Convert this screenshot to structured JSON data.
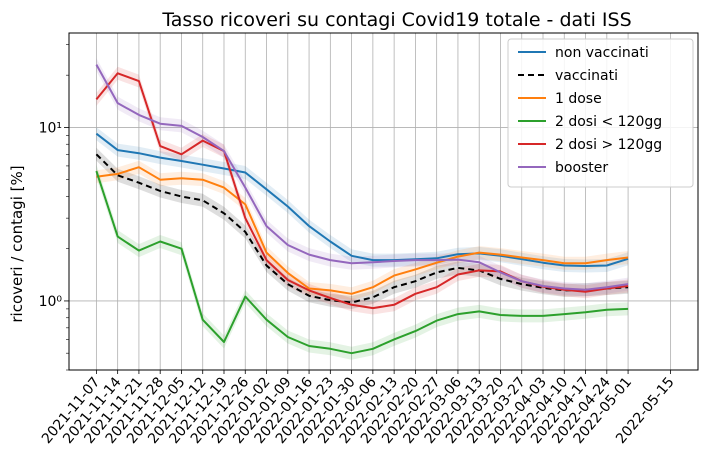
{
  "chart_data": {
    "type": "line",
    "title": "Tasso ricoveri su contagi Covid19 totale - dati ISS",
    "xlabel": "",
    "ylabel": "ricoveri / contagi [%]",
    "yscale": "log",
    "ylim": [
      0.4,
      35
    ],
    "yticks": [
      {
        "value": 1,
        "label": "10⁰"
      },
      {
        "value": 10,
        "label": "10¹"
      }
    ],
    "grid": true,
    "legend_position": "top-right",
    "x": [
      "2021-11-07",
      "2021-11-14",
      "2021-11-21",
      "2021-11-28",
      "2021-12-05",
      "2021-12-12",
      "2021-12-19",
      "2021-12-26",
      "2022-01-02",
      "2022-01-09",
      "2022-01-16",
      "2022-01-23",
      "2022-01-30",
      "2022-02-06",
      "2022-02-13",
      "2022-02-20",
      "2022-02-27",
      "2022-03-06",
      "2022-03-13",
      "2022-03-20",
      "2022-03-27",
      "2022-04-03",
      "2022-04-10",
      "2022-04-17",
      "2022-04-24",
      "2022-05-01"
    ],
    "xticks": [
      "2021-11-07",
      "2021-11-14",
      "2021-11-21",
      "2021-11-28",
      "2021-12-05",
      "2021-12-12",
      "2021-12-19",
      "2021-12-26",
      "2022-01-02",
      "2022-01-09",
      "2022-01-16",
      "2022-01-23",
      "2022-01-30",
      "2022-02-06",
      "2022-02-13",
      "2022-02-20",
      "2022-02-27",
      "2022-03-06",
      "2022-03-13",
      "2022-03-20",
      "2022-03-27",
      "2022-04-03",
      "2022-04-10",
      "2022-04-17",
      "2022-04-24",
      "2022-05-01",
      "2022-05-15"
    ],
    "x_range": [
      "2021-11-07",
      "2022-05-15"
    ],
    "series": [
      {
        "name": "non vaccinati",
        "color": "#1f77b4",
        "dash": "solid",
        "values": [
          9.2,
          7.4,
          7.1,
          6.7,
          6.4,
          6.1,
          5.8,
          5.5,
          4.4,
          3.5,
          2.7,
          2.2,
          1.82,
          1.72,
          1.72,
          1.74,
          1.76,
          1.86,
          1.88,
          1.82,
          1.74,
          1.66,
          1.6,
          1.59,
          1.6,
          1.75
        ]
      },
      {
        "name": "vaccinati",
        "color": "#000000",
        "dash": "dashed",
        "values": [
          7.0,
          5.3,
          4.8,
          4.3,
          4.0,
          3.8,
          3.2,
          2.5,
          1.6,
          1.25,
          1.07,
          1.01,
          0.98,
          1.05,
          1.2,
          1.3,
          1.46,
          1.55,
          1.5,
          1.34,
          1.25,
          1.19,
          1.15,
          1.16,
          1.18,
          1.2
        ]
      },
      {
        "name": "1 dose",
        "color": "#ff7f0e",
        "dash": "solid",
        "values": [
          5.2,
          5.4,
          5.9,
          5.0,
          5.1,
          5.0,
          4.5,
          3.6,
          1.9,
          1.45,
          1.18,
          1.15,
          1.1,
          1.2,
          1.4,
          1.52,
          1.66,
          1.8,
          1.9,
          1.85,
          1.78,
          1.72,
          1.65,
          1.65,
          1.72,
          1.78
        ]
      },
      {
        "name": "2 dosi < 120gg",
        "color": "#2ca02c",
        "dash": "solid",
        "values": [
          5.6,
          2.35,
          1.95,
          2.2,
          2.0,
          0.78,
          0.58,
          1.06,
          0.78,
          0.62,
          0.55,
          0.53,
          0.5,
          0.53,
          0.6,
          0.67,
          0.77,
          0.84,
          0.87,
          0.83,
          0.82,
          0.82,
          0.84,
          0.86,
          0.89,
          0.9
        ]
      },
      {
        "name": "2 dosi > 120gg",
        "color": "#d62728",
        "dash": "solid",
        "values": [
          14.5,
          20.5,
          18.5,
          7.8,
          7.0,
          8.4,
          7.3,
          3.0,
          1.72,
          1.32,
          1.15,
          1.04,
          0.95,
          0.91,
          0.95,
          1.1,
          1.2,
          1.42,
          1.5,
          1.48,
          1.3,
          1.21,
          1.16,
          1.13,
          1.18,
          1.22
        ]
      },
      {
        "name": "booster",
        "color": "#9467bd",
        "dash": "solid",
        "values": [
          23.0,
          13.8,
          11.8,
          10.5,
          10.2,
          8.8,
          7.3,
          4.5,
          2.7,
          2.1,
          1.85,
          1.72,
          1.65,
          1.67,
          1.7,
          1.72,
          1.72,
          1.73,
          1.67,
          1.46,
          1.3,
          1.22,
          1.18,
          1.16,
          1.2,
          1.25
        ]
      }
    ]
  }
}
